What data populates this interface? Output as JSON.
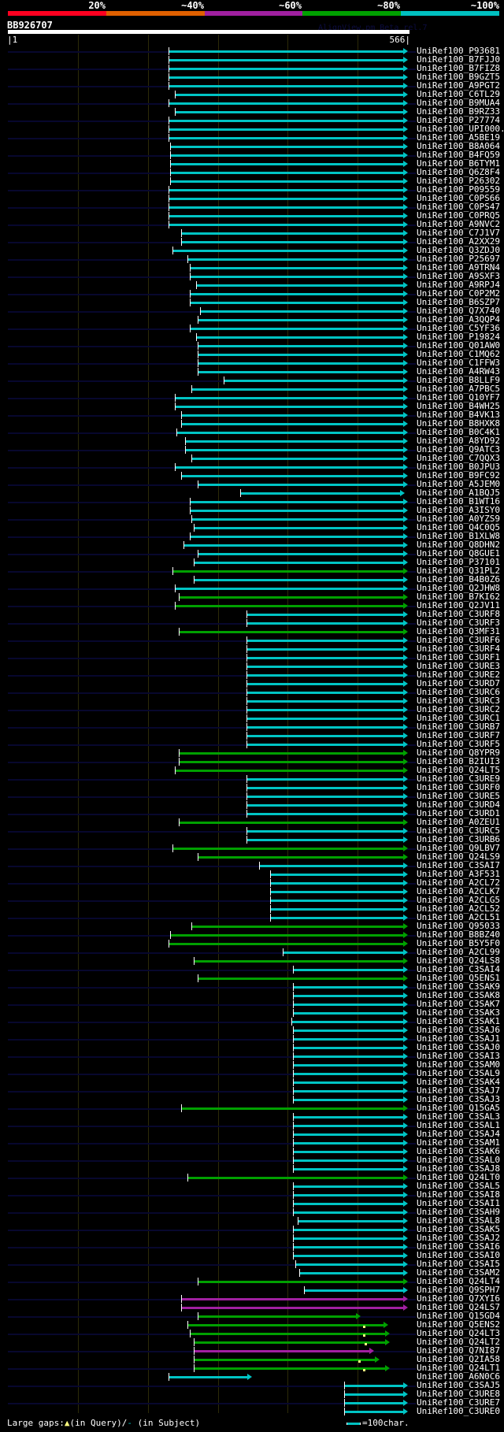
{
  "header": {
    "percent_labels": [
      "20%",
      "~40%",
      "~60%",
      "~80%",
      "~100%"
    ],
    "percent_colors": [
      "#ff0020",
      "#e06000",
      "#a020a0",
      "#00a000",
      "#00c0c0"
    ],
    "query_name": "BB926707",
    "version_text": "AlignView.pm Beta rel.7",
    "axis_start": "|1",
    "axis_end": "566|",
    "query_length": 566
  },
  "colors": {
    "c": "#00c4c4",
    "g": "#00a000",
    "m": "#a020a0"
  },
  "rows": [
    [
      "UniRef100_P93681",
      231,
      566,
      "c"
    ],
    [
      "UniRef100_B7FJJ0",
      231,
      566,
      "c"
    ],
    [
      "UniRef100_B7FIZ8",
      231,
      566,
      "c"
    ],
    [
      "UniRef100_B9GZT5",
      231,
      566,
      "c"
    ],
    [
      "UniRef100_A9PGT2",
      231,
      566,
      "c"
    ],
    [
      "UniRef100_C6TL29",
      240,
      566,
      "c"
    ],
    [
      "UniRef100_B9MUA4",
      231,
      566,
      "c"
    ],
    [
      "UniRef100_B9RZ33",
      240,
      566,
      "c"
    ],
    [
      "UniRef100_P27774",
      231,
      566,
      "c"
    ],
    [
      "UniRef100_UPI000..",
      231,
      566,
      "c"
    ],
    [
      "UniRef100_A5BE19",
      231,
      566,
      "c"
    ],
    [
      "UniRef100_B8A064",
      233,
      566,
      "c"
    ],
    [
      "UniRef100_B4FQ59",
      233,
      566,
      "c"
    ],
    [
      "UniRef100_B6TYM1",
      233,
      566,
      "c"
    ],
    [
      "UniRef100_Q6Z8F4",
      233,
      566,
      "c"
    ],
    [
      "UniRef100_P26302",
      233,
      566,
      "c"
    ],
    [
      "UniRef100_P09559",
      231,
      566,
      "c"
    ],
    [
      "UniRef100_C0PS66",
      231,
      566,
      "c"
    ],
    [
      "UniRef100_C0PS47",
      231,
      566,
      "c"
    ],
    [
      "UniRef100_C0PRQ5",
      231,
      566,
      "c"
    ],
    [
      "UniRef100_A9NVC2",
      231,
      566,
      "c"
    ],
    [
      "UniRef100_C7J1V7",
      249,
      566,
      "c"
    ],
    [
      "UniRef100_A2XX29",
      249,
      566,
      "c"
    ],
    [
      "UniRef100_Q3ZDJ0",
      236,
      566,
      "c"
    ],
    [
      "UniRef100_P25697",
      258,
      566,
      "c"
    ],
    [
      "UniRef100_A9TRN4",
      261,
      566,
      "c"
    ],
    [
      "UniRef100_A9SXF3",
      261,
      566,
      "c"
    ],
    [
      "UniRef100_A9RPJ4",
      270,
      566,
      "c"
    ],
    [
      "UniRef100_C0P2M2",
      261,
      566,
      "c"
    ],
    [
      "UniRef100_B6SZP7",
      261,
      566,
      "c"
    ],
    [
      "UniRef100_Q7X740",
      276,
      566,
      "c"
    ],
    [
      "UniRef100_A3QQP4",
      272,
      566,
      "c"
    ],
    [
      "UniRef100_C5YF36",
      261,
      566,
      "c"
    ],
    [
      "UniRef100_P19824",
      270,
      566,
      "c"
    ],
    [
      "UniRef100_Q01AW0",
      272,
      566,
      "c"
    ],
    [
      "UniRef100_C1MQ62",
      272,
      566,
      "c"
    ],
    [
      "UniRef100_C1FFW3",
      272,
      566,
      "c"
    ],
    [
      "UniRef100_A4RW43",
      272,
      566,
      "c"
    ],
    [
      "UniRef100_B8LLF9",
      309,
      566,
      "c"
    ],
    [
      "UniRef100_A7PBC5",
      263,
      566,
      "c"
    ],
    [
      "UniRef100_Q10YF7",
      240,
      566,
      "c"
    ],
    [
      "UniRef100_B4WH25",
      240,
      566,
      "c"
    ],
    [
      "UniRef100_B4VK13",
      249,
      566,
      "c"
    ],
    [
      "UniRef100_B8HXK8",
      249,
      566,
      "c"
    ],
    [
      "UniRef100_B0C4K1",
      242,
      566,
      "c"
    ],
    [
      "UniRef100_A8YD92",
      254,
      566,
      "c"
    ],
    [
      "UniRef100_Q9ATC3",
      254,
      566,
      "c"
    ],
    [
      "UniRef100_C7QQX3",
      263,
      566,
      "c"
    ],
    [
      "UniRef100_B0JPU3",
      240,
      566,
      "c"
    ],
    [
      "UniRef100_B9FC92",
      249,
      566,
      "c"
    ],
    [
      "UniRef100_A5JEM0",
      272,
      566,
      "c"
    ],
    [
      "UniRef100_A1BQJ5",
      333,
      562,
      "c"
    ],
    [
      "UniRef100_B1WT16",
      261,
      566,
      "c"
    ],
    [
      "UniRef100_A3ISY0",
      261,
      566,
      "c"
    ],
    [
      "UniRef100_A0YZS9",
      263,
      566,
      "c"
    ],
    [
      "UniRef100_Q4C0Q5",
      267,
      566,
      "c"
    ],
    [
      "UniRef100_B1XLW8",
      261,
      566,
      "c"
    ],
    [
      "UniRef100_Q8DHN2",
      252,
      566,
      "c"
    ],
    [
      "UniRef100_Q8GUE1",
      272,
      566,
      "c"
    ],
    [
      "UniRef100_P37101",
      267,
      566,
      "c"
    ],
    [
      "UniRef100_Q31PL2",
      236,
      566,
      "g"
    ],
    [
      "UniRef100_B4B0Z6",
      267,
      566,
      "c"
    ],
    [
      "UniRef100_Q2JHW8",
      240,
      566,
      "c"
    ],
    [
      "UniRef100_B7KI62",
      245,
      566,
      "g"
    ],
    [
      "UniRef100_Q2JV11",
      240,
      566,
      "g"
    ],
    [
      "UniRef100_C3URF8",
      342,
      566,
      "c"
    ],
    [
      "UniRef100_C3URF3",
      342,
      566,
      "c"
    ],
    [
      "UniRef100_Q3MF31",
      245,
      566,
      "g"
    ],
    [
      "UniRef100_C3URF6",
      342,
      566,
      "c"
    ],
    [
      "UniRef100_C3URF4",
      342,
      566,
      "c"
    ],
    [
      "UniRef100_C3URF1",
      342,
      566,
      "c"
    ],
    [
      "UniRef100_C3URE3",
      342,
      566,
      "c"
    ],
    [
      "UniRef100_C3URE2",
      342,
      566,
      "c"
    ],
    [
      "UniRef100_C3URD7",
      342,
      566,
      "c"
    ],
    [
      "UniRef100_C3URC6",
      342,
      566,
      "c"
    ],
    [
      "UniRef100_C3URC3",
      342,
      566,
      "c"
    ],
    [
      "UniRef100_C3URC2",
      342,
      566,
      "c"
    ],
    [
      "UniRef100_C3URC1",
      342,
      566,
      "c"
    ],
    [
      "UniRef100_C3URB7",
      342,
      566,
      "c"
    ],
    [
      "UniRef100_C3URF7",
      342,
      566,
      "c"
    ],
    [
      "UniRef100_C3URF5",
      342,
      566,
      "c"
    ],
    [
      "UniRef100_Q8YPR9",
      245,
      566,
      "g"
    ],
    [
      "UniRef100_B2IUI3",
      245,
      566,
      "g"
    ],
    [
      "UniRef100_Q24LT5",
      240,
      566,
      "g"
    ],
    [
      "UniRef100_C3URE9",
      342,
      566,
      "c"
    ],
    [
      "UniRef100_C3URF0",
      342,
      566,
      "c"
    ],
    [
      "UniRef100_C3URE5",
      342,
      566,
      "c"
    ],
    [
      "UniRef100_C3URD4",
      342,
      566,
      "c"
    ],
    [
      "UniRef100_C3URD1",
      342,
      566,
      "c"
    ],
    [
      "UniRef100_A0ZEU1",
      245,
      566,
      "g"
    ],
    [
      "UniRef100_C3URC5",
      342,
      566,
      "c"
    ],
    [
      "UniRef100_C3URB6",
      342,
      566,
      "c"
    ],
    [
      "UniRef100_Q9LBV7",
      236,
      566,
      "g"
    ],
    [
      "UniRef100_Q24LS9",
      272,
      566,
      "g"
    ],
    [
      "UniRef100_C3SAI7",
      360,
      566,
      "c"
    ],
    [
      "UniRef100_A3F531",
      376,
      566,
      "c"
    ],
    [
      "UniRef100_A2CL72",
      376,
      566,
      "c"
    ],
    [
      "UniRef100_A2CLK7",
      376,
      566,
      "c"
    ],
    [
      "UniRef100_A2CLG5",
      376,
      566,
      "c"
    ],
    [
      "UniRef100_A2CL52",
      376,
      566,
      "c"
    ],
    [
      "UniRef100_A2CL51",
      376,
      566,
      "c"
    ],
    [
      "UniRef100_Q95033",
      263,
      566,
      "g"
    ],
    [
      "UniRef100_B8BZ40",
      233,
      566,
      "g"
    ],
    [
      "UniRef100_B5Y5F0",
      231,
      566,
      "g"
    ],
    [
      "UniRef100_A2CL99",
      394,
      566,
      "c"
    ],
    [
      "UniRef100_Q24LS8",
      267,
      566,
      "g"
    ],
    [
      "UniRef100_C3SAI4",
      408,
      566,
      "c"
    ],
    [
      "UniRef100_Q5ENS1",
      272,
      566,
      "g"
    ],
    [
      "UniRef100_C3SAK9",
      408,
      566,
      "c"
    ],
    [
      "UniRef100_C3SAK8",
      408,
      566,
      "c"
    ],
    [
      "UniRef100_C3SAK7",
      408,
      566,
      "c"
    ],
    [
      "UniRef100_C3SAK3",
      408,
      566,
      "c"
    ],
    [
      "UniRef100_C3SAK1",
      406,
      566,
      "c"
    ],
    [
      "UniRef100_C3SAJ6",
      408,
      566,
      "c"
    ],
    [
      "UniRef100_C3SAJ1",
      408,
      566,
      "c"
    ],
    [
      "UniRef100_C3SAJ0",
      408,
      566,
      "c"
    ],
    [
      "UniRef100_C3SAI3",
      408,
      566,
      "c"
    ],
    [
      "UniRef100_C3SAM0",
      408,
      566,
      "c"
    ],
    [
      "UniRef100_C3SAL9",
      408,
      566,
      "c"
    ],
    [
      "UniRef100_C3SAK4",
      408,
      566,
      "c"
    ],
    [
      "UniRef100_C3SAJ7",
      408,
      566,
      "c"
    ],
    [
      "UniRef100_C3SAJ3",
      408,
      566,
      "c"
    ],
    [
      "UniRef100_Q15GA5",
      249,
      566,
      "g"
    ],
    [
      "UniRef100_C3SAL3",
      408,
      566,
      "c"
    ],
    [
      "UniRef100_C3SAL1",
      408,
      566,
      "c"
    ],
    [
      "UniRef100_C3SAJ4",
      408,
      566,
      "c"
    ],
    [
      "UniRef100_C3SAM1",
      408,
      566,
      "c"
    ],
    [
      "UniRef100_C3SAK6",
      408,
      566,
      "c"
    ],
    [
      "UniRef100_C3SAL0",
      408,
      566,
      "c"
    ],
    [
      "UniRef100_C3SAJ8",
      408,
      566,
      "c"
    ],
    [
      "UniRef100_Q24LT0",
      258,
      566,
      "g"
    ],
    [
      "UniRef100_C3SAL5",
      408,
      566,
      "c"
    ],
    [
      "UniRef100_C3SAI8",
      408,
      566,
      "c"
    ],
    [
      "UniRef100_C3SAI1",
      408,
      566,
      "c"
    ],
    [
      "UniRef100_C3SAH9",
      408,
      566,
      "c"
    ],
    [
      "UniRef100_C3SAL8",
      415,
      566,
      "c"
    ],
    [
      "UniRef100_C3SAK5",
      408,
      566,
      "c"
    ],
    [
      "UniRef100_C3SAJ2",
      408,
      566,
      "c"
    ],
    [
      "UniRef100_C3SAI6",
      408,
      566,
      "c"
    ],
    [
      "UniRef100_C3SAI0",
      408,
      566,
      "c"
    ],
    [
      "UniRef100_C3SAI5",
      412,
      566,
      "c"
    ],
    [
      "UniRef100_C3SAM2",
      417,
      566,
      "c"
    ],
    [
      "UniRef100_Q24LT4",
      272,
      566,
      "g"
    ],
    [
      "UniRef100_Q9SPH7",
      424,
      566,
      "c"
    ],
    [
      "UniRef100_Q7XYI6",
      249,
      566,
      "m"
    ],
    [
      "UniRef100_Q24LS7",
      249,
      566,
      "m"
    ],
    [
      "UniRef100_Q15GD4",
      272,
      498,
      "g"
    ],
    [
      "UniRef100_Q5ENS2",
      258,
      538,
      "g",
      509
    ],
    [
      "UniRef100_Q24LT3",
      261,
      540,
      "g",
      509
    ],
    [
      "UniRef100_Q24LT2",
      267,
      540,
      "g",
      511
    ],
    [
      "UniRef100_Q7NI87",
      267,
      518,
      "m"
    ],
    [
      "UniRef100_Q2IA58",
      267,
      525,
      "g",
      502
    ],
    [
      "UniRef100_Q24LT1",
      267,
      540,
      "g",
      509
    ],
    [
      "UniRef100_A6N0C6",
      231,
      343,
      "c"
    ],
    [
      "UniRef100_C3SAJ5",
      482,
      566,
      "c"
    ],
    [
      "UniRef100_C3URE8",
      482,
      566,
      "c"
    ],
    [
      "UniRef100_C3URE7",
      482,
      566,
      "c"
    ],
    [
      "UniRef100_C3URE0",
      482,
      566,
      "c"
    ]
  ],
  "footer": {
    "gaps_label": "Large gaps:",
    "query_marker": "▲",
    "in_query": "(in Query)/",
    "subject_marker": "-",
    "in_subject": "(in Subject)",
    "scale_label": "=100char."
  }
}
